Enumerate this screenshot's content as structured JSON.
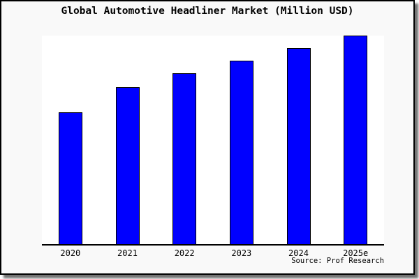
{
  "title": "Global Automotive Headliner Market (Million USD)",
  "source_label": "Source: Prof Research",
  "colors": {
    "bar_fill": "#0000ff",
    "bar_border": "#000000",
    "figure_background": "#f9f9f9",
    "plot_background": "#ffffff",
    "frame_border": "#000000",
    "text": "#000000"
  },
  "chart_data": {
    "type": "bar",
    "title": "Global Automotive Headliner Market (Million USD)",
    "categories": [
      "2020",
      "2021",
      "2022",
      "2023",
      "2024",
      "2025e"
    ],
    "values": [
      63.1,
      75.4,
      82,
      88.1,
      94.1,
      100
    ],
    "value_scale": "relative bar height, percent of tallest bar (2025e); no y-axis tick labels shown in figure",
    "xlabel": "",
    "ylabel": "",
    "ylim": [
      0,
      100
    ],
    "grid": false,
    "legend": "none",
    "annotations": [
      "Source: Prof Research"
    ]
  }
}
